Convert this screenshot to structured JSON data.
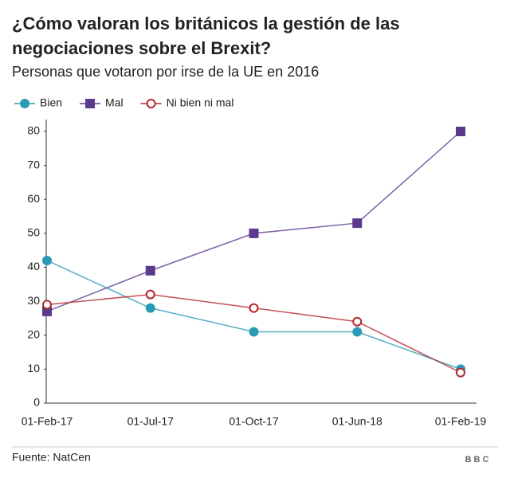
{
  "chart_data": {
    "type": "line",
    "title": "¿Cómo valoran los británicos la gestión de las negociaciones sobre el Brexit?",
    "subtitle": "Personas que votaron por irse de la UE en 2016",
    "categories": [
      "01-Feb-17",
      "01-Jul-17",
      "01-Oct-17",
      "01-Jun-18",
      "01-Feb-19"
    ],
    "series": [
      {
        "name": "Bien",
        "color": "#2a9bb5",
        "marker": "circle",
        "values": [
          42,
          28,
          21,
          21,
          10
        ]
      },
      {
        "name": "Mal",
        "color": "#5b3a8e",
        "marker": "square",
        "values": [
          27,
          39,
          50,
          53,
          80
        ]
      },
      {
        "name": "Ni bien ni mal",
        "color": "#b3272d",
        "marker": "circle-open",
        "values": [
          29,
          32,
          28,
          24,
          9
        ]
      }
    ],
    "ylim": [
      0,
      80
    ],
    "yticks": [
      0,
      10,
      20,
      30,
      40,
      50,
      60,
      70,
      80
    ],
    "grid": false,
    "source": "Fuente: NatCen",
    "logo": "BBC"
  }
}
